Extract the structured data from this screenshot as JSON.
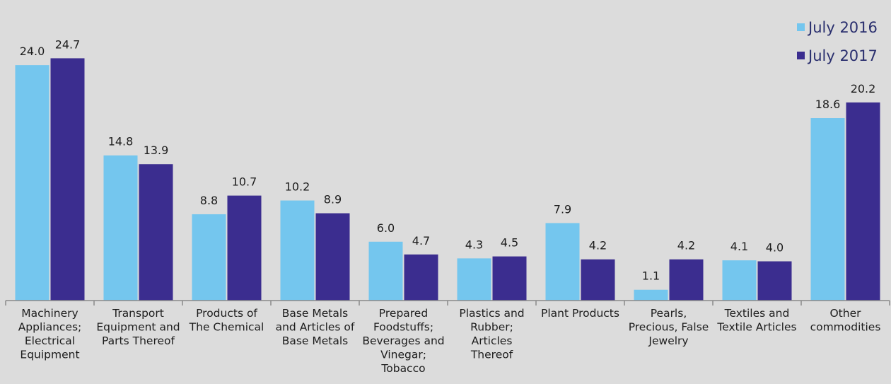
{
  "chart_data": {
    "type": "bar",
    "categories": [
      [
        "Machinery",
        "Appliances;",
        "Electrical",
        "Equipment"
      ],
      [
        "Transport",
        "Equipment and",
        "Parts Thereof"
      ],
      [
        "Products of",
        "The Chemical"
      ],
      [
        "Base Metals",
        "and Articles of",
        "Base Metals"
      ],
      [
        "Prepared",
        "Foodstuffs;",
        "Beverages and",
        "Vinegar;",
        "Tobacco"
      ],
      [
        "Plastics and",
        "Rubber;",
        "Articles",
        "Thereof"
      ],
      [
        "Plant Products"
      ],
      [
        "Pearls,",
        "Precious, False",
        "Jewelry"
      ],
      [
        "Textiles and",
        "Textile Articles"
      ],
      [
        "Other",
        "commodities"
      ]
    ],
    "series": [
      {
        "name": "July 2016",
        "color": "#74c6ee",
        "values": [
          24.0,
          14.8,
          8.8,
          10.2,
          6.0,
          4.3,
          7.9,
          1.1,
          4.1,
          18.6
        ]
      },
      {
        "name": "July 2017",
        "color": "#3b2d8f",
        "values": [
          24.7,
          13.9,
          10.7,
          8.9,
          4.7,
          4.5,
          4.2,
          4.2,
          4.0,
          20.2
        ]
      }
    ],
    "ylim": [
      0,
      30
    ],
    "legend_position": "top-right",
    "grid": false
  }
}
